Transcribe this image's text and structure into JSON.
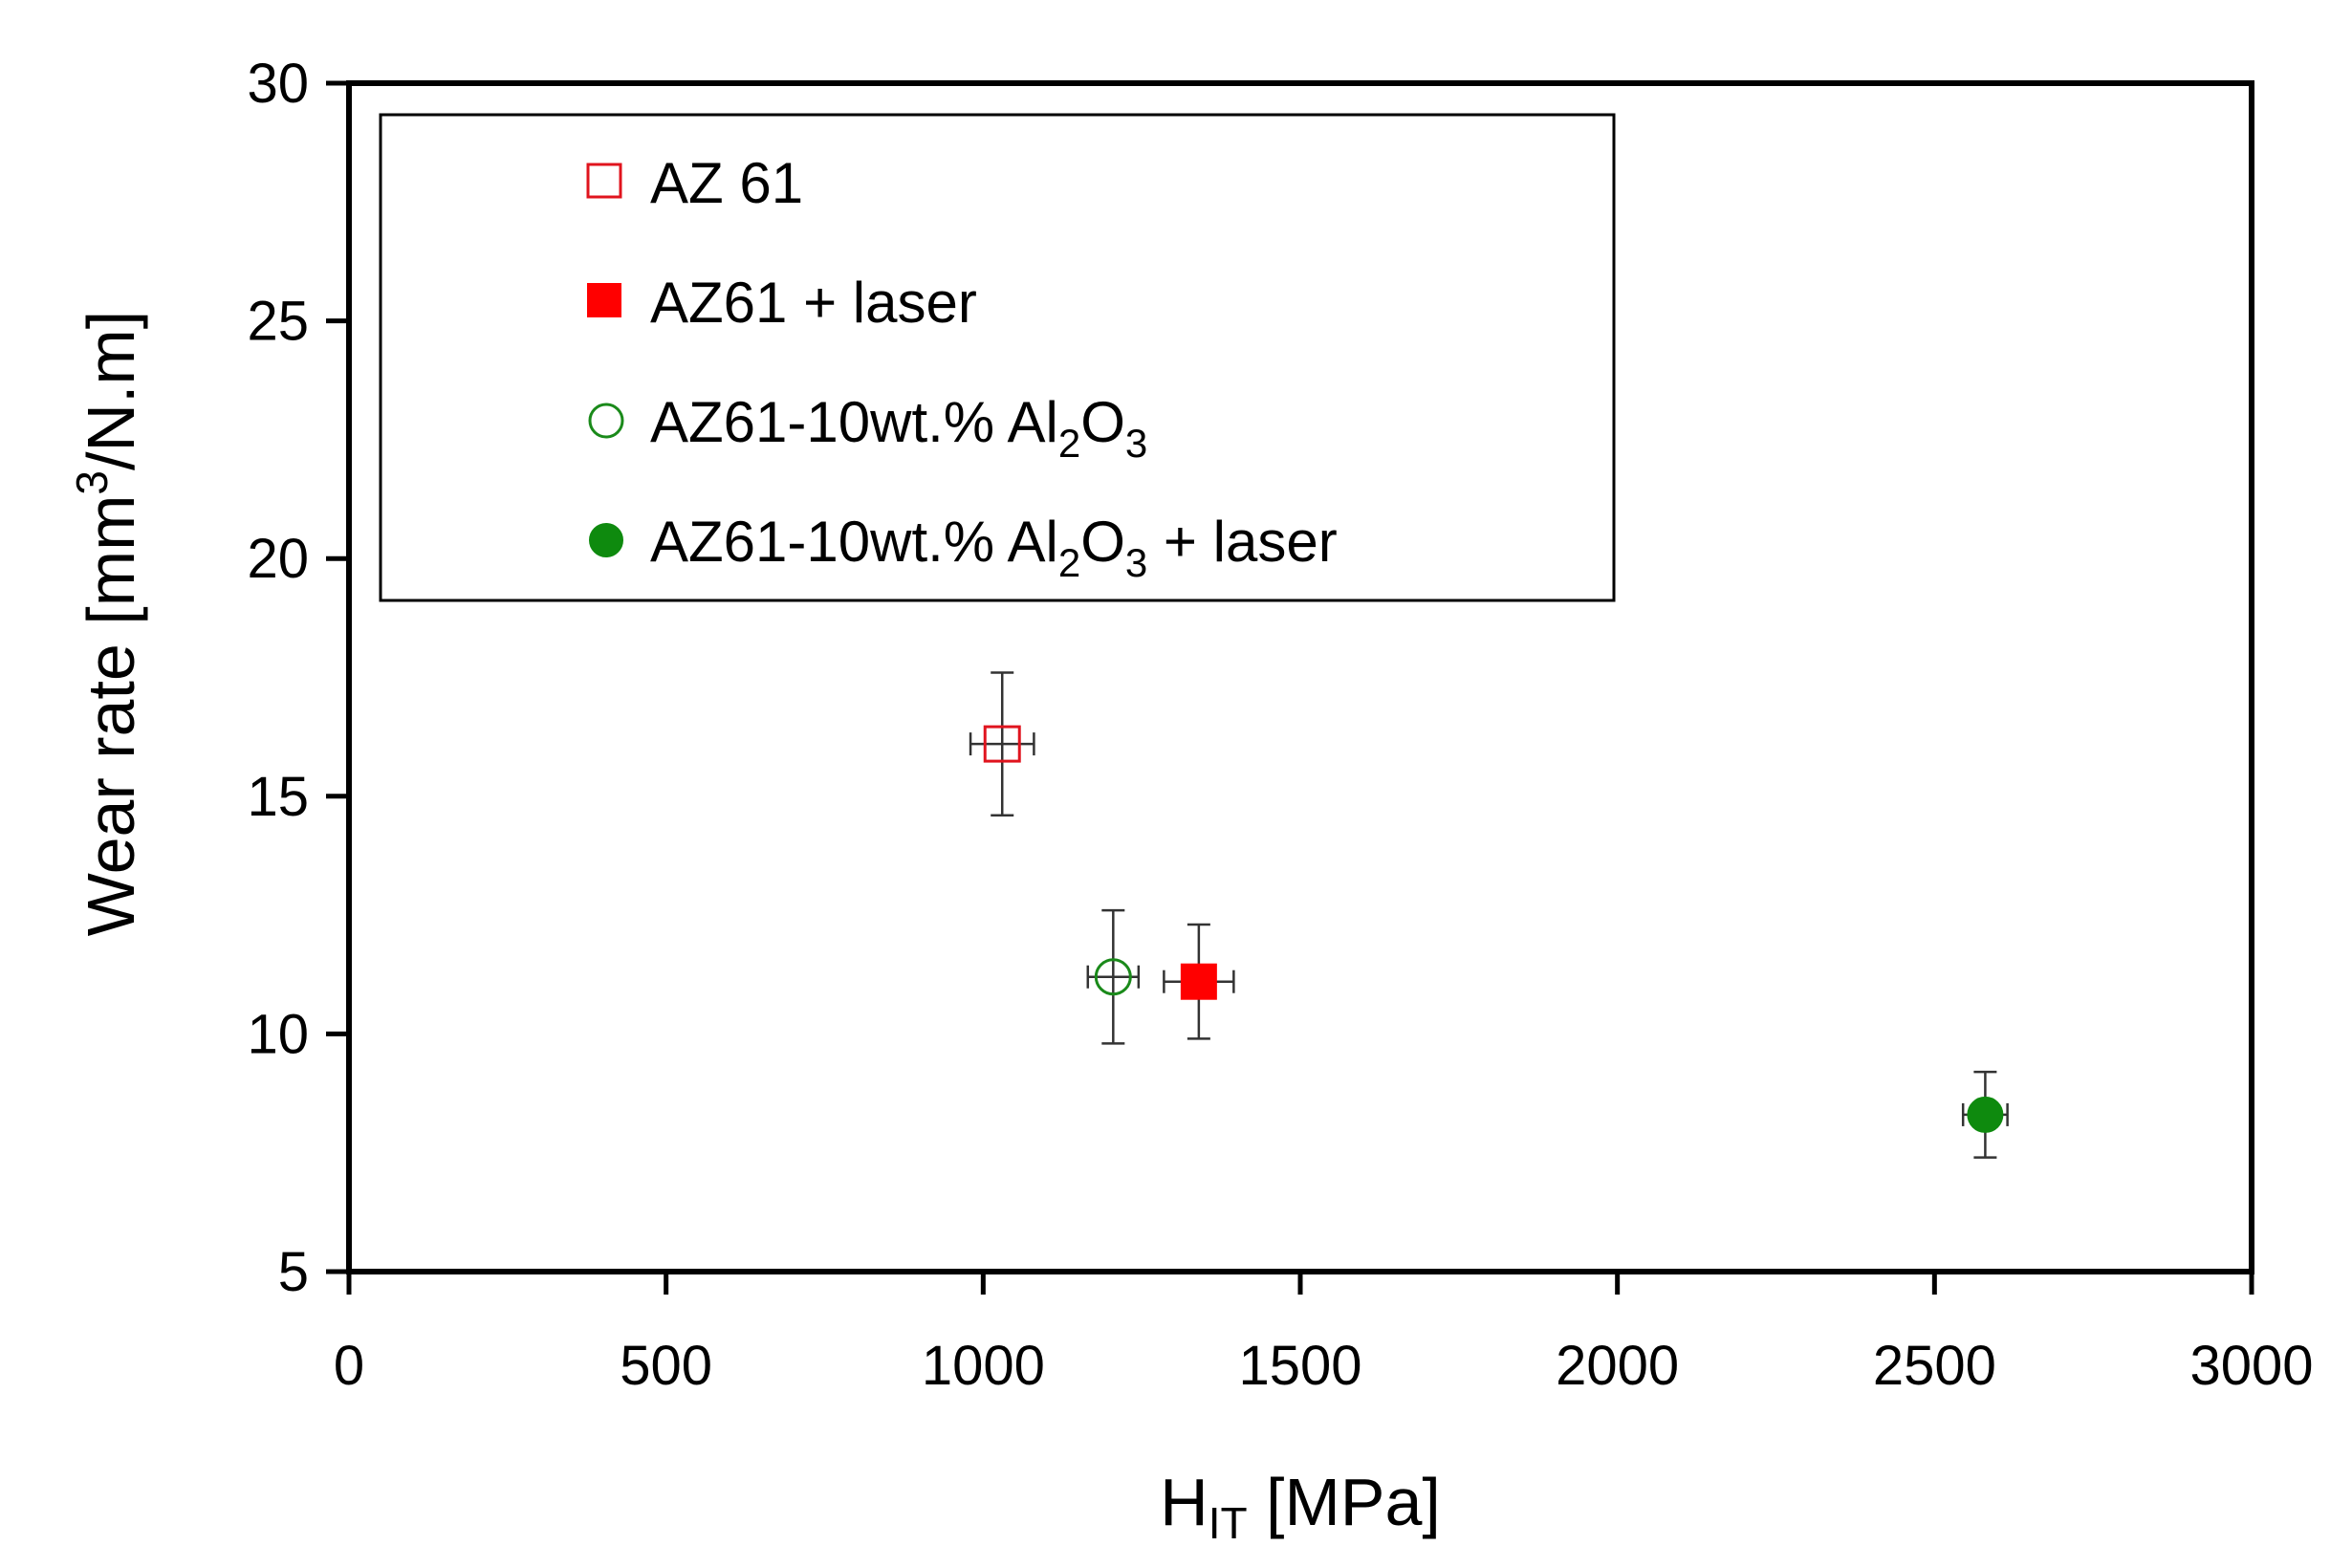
{
  "chart_data": {
    "type": "scatter",
    "title": "",
    "xlabel_main": "H",
    "xlabel_sub": "IT",
    "xlabel_tail": " [MPa]",
    "ylabel_main": "Wear rate [mm",
    "ylabel_sup": "3",
    "ylabel_tail": "/N.m]",
    "xlim": [
      0,
      3000
    ],
    "ylim": [
      5,
      30
    ],
    "xticks": [
      0,
      500,
      1000,
      1500,
      2000,
      2500,
      3000
    ],
    "xtick_labels": [
      "0",
      "500",
      "1000",
      "1500",
      "2000",
      "2500",
      "3000"
    ],
    "yticks": [
      5,
      10,
      15,
      20,
      25,
      30
    ],
    "ytick_labels": [
      "5",
      "10",
      "15",
      "20",
      "25",
      "30"
    ],
    "grid": false,
    "legend_position": "top-left",
    "series": [
      {
        "name": "AZ 61",
        "marker": "square-open",
        "color": "#e0141e",
        "x": [
          1030
        ],
        "y": [
          16.1
        ],
        "x_err": [
          50
        ],
        "y_err": [
          1.5
        ]
      },
      {
        "name": "AZ61 + laser",
        "marker": "square-filled",
        "color": "#ff0000",
        "x": [
          1340
        ],
        "y": [
          11.1
        ],
        "x_err": [
          55
        ],
        "y_err": [
          1.2
        ]
      },
      {
        "name": "AZ61-10wt.% Al2O3",
        "name_parts": [
          "AZ61-10wt.% Al",
          "2",
          "O",
          "3"
        ],
        "marker": "circle-open",
        "color": "#1a8a1a",
        "x": [
          1205
        ],
        "y": [
          11.2
        ],
        "x_err": [
          40
        ],
        "y_err": [
          1.4
        ]
      },
      {
        "name": "AZ61-10wt.% Al2O3 + laser",
        "name_parts": [
          "AZ61-10wt.% Al",
          "2",
          "O",
          "3",
          " + laser"
        ],
        "marker": "circle-filled",
        "color": "#0e8a0e",
        "x": [
          2580
        ],
        "y": [
          8.3
        ],
        "x_err": [
          35
        ],
        "y_err": [
          0.9
        ]
      }
    ]
  }
}
